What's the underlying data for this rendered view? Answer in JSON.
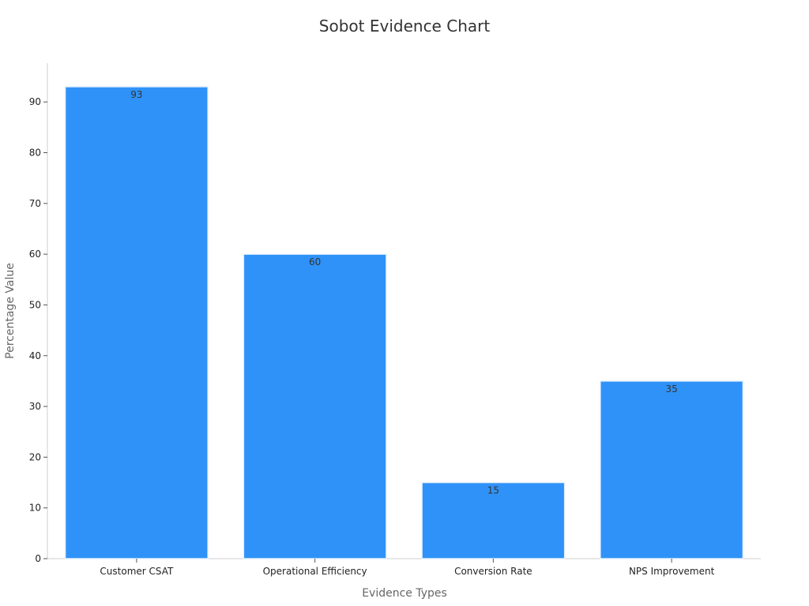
{
  "chart_data": {
    "type": "bar",
    "title": "Sobot Evidence Chart",
    "xlabel": "Evidence Types",
    "ylabel": "Percentage Value",
    "categories": [
      "Customer CSAT",
      "Operational Efficiency",
      "Conversion Rate",
      "NPS Improvement"
    ],
    "values": [
      93,
      60,
      15,
      35
    ],
    "data_labels": [
      "93",
      "60",
      "15",
      "35"
    ],
    "ylim": [
      0,
      97.65
    ],
    "yticks": [
      0,
      10,
      20,
      30,
      40,
      50,
      60,
      70,
      80,
      90
    ],
    "grid": false,
    "legend": "none",
    "colors": {
      "bar": "#2f92f8",
      "bar_edge": "#e6f1fd",
      "axis": "#cccccc"
    }
  }
}
